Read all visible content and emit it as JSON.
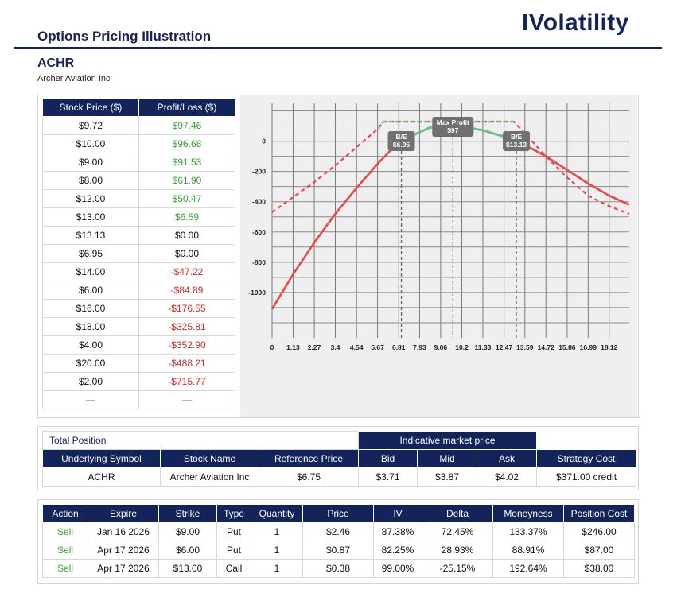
{
  "header": {
    "title": "Options Pricing Illustration",
    "brand": "IVolatility",
    "ticker": "ACHR",
    "company": "Archer Aviation Inc"
  },
  "colors": {
    "navy": "#12245a",
    "profit_green": "#3aa335",
    "loss_red": "#d42a2a",
    "expiry_line": "#e84848",
    "current_line": "#e84848",
    "profit_segment": "#6fbf8e"
  },
  "pl_table": {
    "headers": [
      "Stock Price ($)",
      "Profit/Loss ($)"
    ],
    "rows": [
      {
        "price": "$9.72",
        "pl": "$97.46",
        "sign": "pos"
      },
      {
        "price": "$10.00",
        "pl": "$96.68",
        "sign": "pos"
      },
      {
        "price": "$9.00",
        "pl": "$91.53",
        "sign": "pos"
      },
      {
        "price": "$8.00",
        "pl": "$61.90",
        "sign": "pos"
      },
      {
        "price": "$12.00",
        "pl": "$50.47",
        "sign": "pos"
      },
      {
        "price": "$13.00",
        "pl": "$6.59",
        "sign": "pos"
      },
      {
        "price": "$13.13",
        "pl": "$0.00",
        "sign": "zero"
      },
      {
        "price": "$6.95",
        "pl": "$0.00",
        "sign": "zero"
      },
      {
        "price": "$14.00",
        "pl": "-$47.22",
        "sign": "neg"
      },
      {
        "price": "$6.00",
        "pl": "-$84.89",
        "sign": "neg"
      },
      {
        "price": "$16.00",
        "pl": "-$176.55",
        "sign": "neg"
      },
      {
        "price": "$18.00",
        "pl": "-$325.81",
        "sign": "neg"
      },
      {
        "price": "$4.00",
        "pl": "-$352.90",
        "sign": "neg"
      },
      {
        "price": "$20.00",
        "pl": "-$488.21",
        "sign": "neg"
      },
      {
        "price": "$2.00",
        "pl": "-$715.77",
        "sign": "neg"
      },
      {
        "price": "—",
        "pl": "—",
        "sign": "zero"
      }
    ]
  },
  "chart_data": {
    "type": "line",
    "x_ticks": [
      "0",
      "1.13",
      "2.27",
      "3.4",
      "4.54",
      "5.67",
      "6.81",
      "7.93",
      "9.06",
      "10.2",
      "11.33",
      "12.47",
      "13.59",
      "14.72",
      "15.86",
      "16.99",
      "18.12"
    ],
    "y_ticks": [
      "0",
      "-200",
      "-400",
      "-600",
      "-800",
      "-1000"
    ],
    "xlim": [
      0,
      19.2
    ],
    "ylim": [
      -1300,
      250
    ],
    "grid": true,
    "series": [
      {
        "style": "solid",
        "x": [
          0,
          1.13,
          2.27,
          3.4,
          4.54,
          5.67,
          6.3,
          6.95,
          7.93,
          8.5,
          9.06,
          9.72,
          10.2,
          11.33,
          12.47,
          13.13,
          13.59,
          14.72,
          15.86,
          16.99,
          18.12,
          19.2
        ],
        "y": [
          -1110,
          -880,
          -670,
          -480,
          -310,
          -150,
          -70,
          0,
          60,
          90,
          95,
          97,
          96,
          72,
          30,
          0,
          -25,
          -100,
          -190,
          -280,
          -360,
          -420
        ]
      },
      {
        "style": "dashed",
        "x": [
          0,
          1.13,
          2.27,
          3.4,
          4.54,
          5.67,
          6.0,
          9.0,
          13.0,
          14.72,
          15.86,
          16.99,
          18.12,
          19.2
        ],
        "y": [
          -470,
          -370,
          -270,
          -160,
          -40,
          80,
          129,
          129,
          129,
          -100,
          -240,
          -360,
          -430,
          -480
        ]
      }
    ],
    "annotations": [
      {
        "title": "B/E",
        "value": "$6.95",
        "x": 6.95
      },
      {
        "title": "Max Profit",
        "value": "$97",
        "x": 9.72
      },
      {
        "title": "B/E",
        "value": "$13.13",
        "x": 13.13
      }
    ]
  },
  "position": {
    "caption": "Total Position",
    "market_header": "Indicative market price",
    "headers": [
      "Underlying Symbol",
      "Stock Name",
      "Reference Price",
      "Bid",
      "Mid",
      "Ask",
      "Strategy Cost"
    ],
    "values": [
      "ACHR",
      "Archer Aviation Inc",
      "$6.75",
      "$3.71",
      "$3.87",
      "$4.02",
      "$371.00 credit"
    ]
  },
  "legs": {
    "headers": [
      "Action",
      "Expire",
      "Strike",
      "Type",
      "Quantity",
      "Price",
      "IV",
      "Delta",
      "Moneyness",
      "Position Cost"
    ],
    "rows": [
      [
        "Sell",
        "Jan 16 2026",
        "$9.00",
        "Put",
        "1",
        "$2.46",
        "87.38%",
        "72.45%",
        "133.37%",
        "$246.00"
      ],
      [
        "Sell",
        "Apr 17 2026",
        "$6.00",
        "Put",
        "1",
        "$0.87",
        "82.25%",
        "28.93%",
        "88.91%",
        "$87.00"
      ],
      [
        "Sell",
        "Apr 17 2026",
        "$13.00",
        "Call",
        "1",
        "$0.38",
        "99.00%",
        "-25.15%",
        "192.64%",
        "$38.00"
      ]
    ]
  }
}
